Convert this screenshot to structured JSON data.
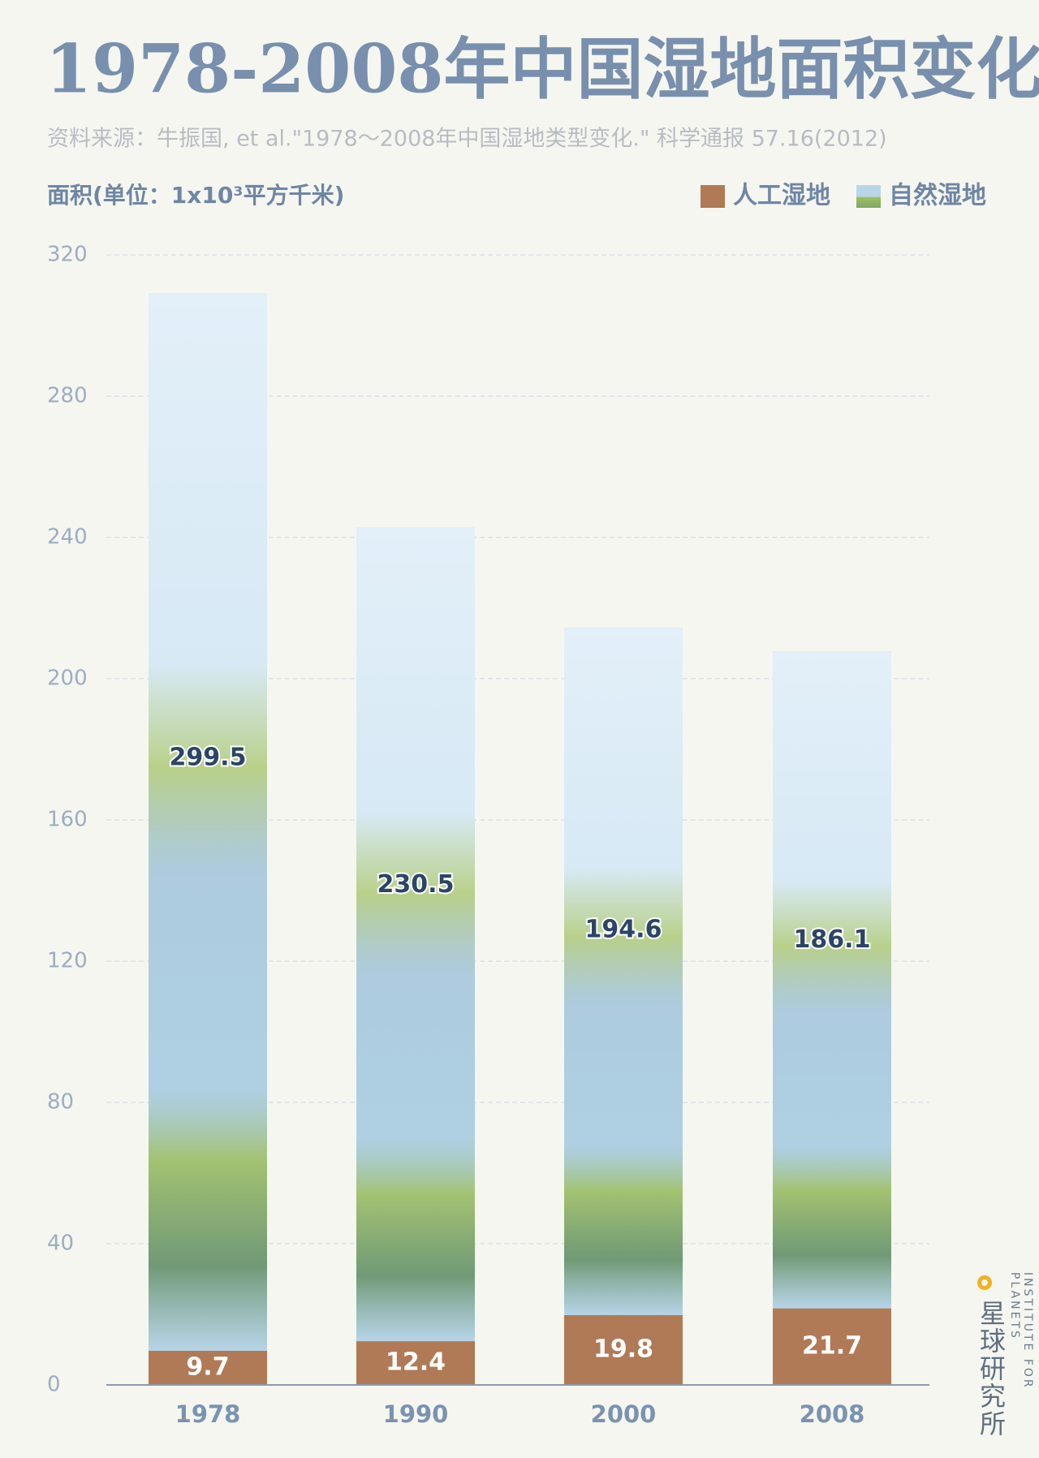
{
  "chart_data": {
    "type": "stacked_bar",
    "title": "1978-2008年中国湿地面积变化",
    "subtitle": "资料来源：牛振国, et al.\"1978～2008年中国湿地类型变化.\" 科学通报 57.16(2012)",
    "y_label": "面积(单位：1x10³平方千米)",
    "categories": [
      "1978",
      "1990",
      "2000",
      "2008"
    ],
    "series": [
      {
        "name": "人工湿地",
        "color": "#b07a56",
        "values": [
          9.7,
          12.4,
          19.8,
          21.7
        ]
      },
      {
        "name": "自然湿地",
        "color": "#b7d6e8",
        "values": [
          299.5,
          230.5,
          194.6,
          186.1
        ]
      }
    ],
    "ylim": [
      0,
      320
    ],
    "yticks": [
      0,
      40,
      80,
      120,
      160,
      200,
      240,
      280,
      320
    ],
    "grid": true,
    "legend": "top-right"
  },
  "brand": {
    "name": "星球研究所",
    "tagline": "INSTITUTE FOR PLANETS"
  }
}
